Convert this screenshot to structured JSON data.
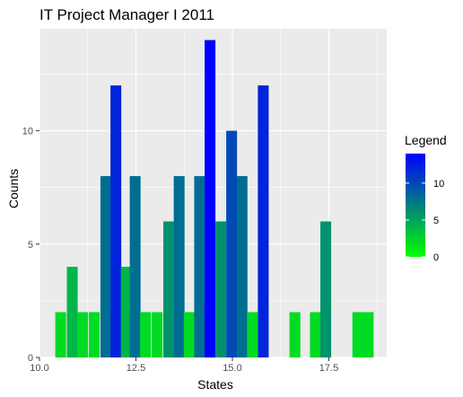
{
  "chart_data": {
    "type": "bar",
    "title": "IT Project Manager I 2011",
    "xlabel": "States",
    "ylabel": "Counts",
    "xlim": [
      10.0,
      19.0
    ],
    "ylim": [
      0,
      14.5
    ],
    "x_ticks": [
      "10.0",
      "12.5",
      "15.0",
      "17.5"
    ],
    "y_ticks": [
      "0",
      "5",
      "10"
    ],
    "legend": {
      "title": "Legend",
      "labels": [
        "10",
        "5",
        "0"
      ],
      "color_low": "#00ff00",
      "color_high": "#0000ff",
      "value_min": 0,
      "value_max": 14
    },
    "bar_width": 0.28,
    "bars": [
      {
        "x": 10.55,
        "value": 2
      },
      {
        "x": 10.85,
        "value": 4
      },
      {
        "x": 11.12,
        "value": 2
      },
      {
        "x": 11.42,
        "value": 2
      },
      {
        "x": 11.72,
        "value": 8
      },
      {
        "x": 11.98,
        "value": 12
      },
      {
        "x": 12.25,
        "value": 4
      },
      {
        "x": 12.48,
        "value": 8
      },
      {
        "x": 12.75,
        "value": 2
      },
      {
        "x": 13.05,
        "value": 2
      },
      {
        "x": 13.35,
        "value": 6
      },
      {
        "x": 13.62,
        "value": 8
      },
      {
        "x": 13.88,
        "value": 2
      },
      {
        "x": 14.15,
        "value": 8
      },
      {
        "x": 14.42,
        "value": 14
      },
      {
        "x": 14.7,
        "value": 6
      },
      {
        "x": 14.98,
        "value": 10
      },
      {
        "x": 15.25,
        "value": 8
      },
      {
        "x": 15.52,
        "value": 2
      },
      {
        "x": 15.8,
        "value": 12
      },
      {
        "x": 16.62,
        "value": 2
      },
      {
        "x": 17.15,
        "value": 2
      },
      {
        "x": 17.42,
        "value": 6
      },
      {
        "x": 18.25,
        "value": 2
      },
      {
        "x": 18.52,
        "value": 2
      }
    ],
    "grid": true,
    "legend_position": "right"
  }
}
